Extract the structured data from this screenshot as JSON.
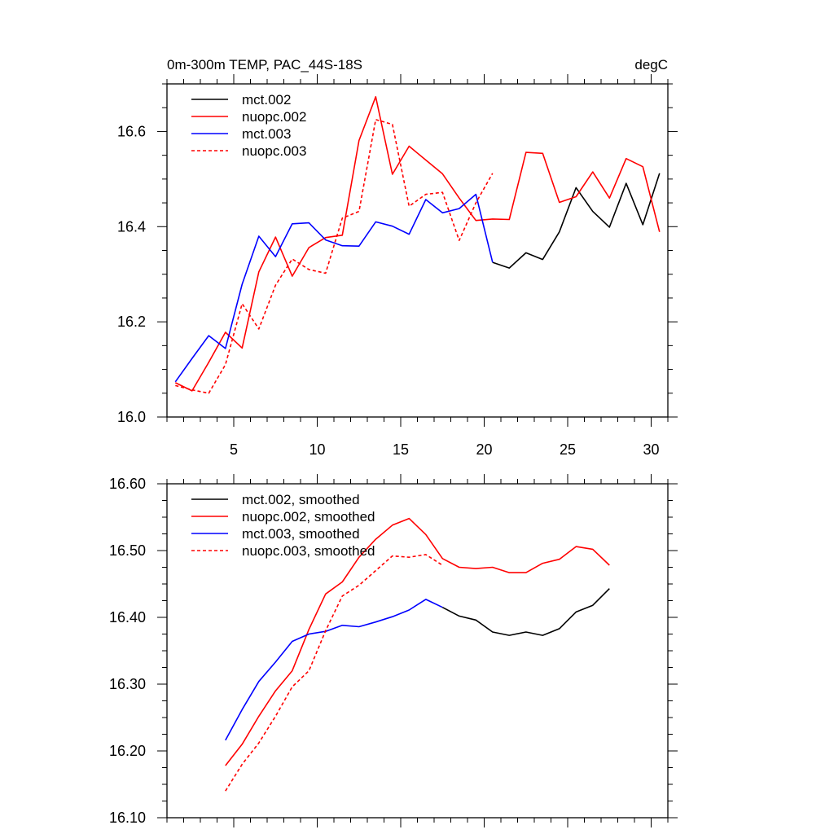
{
  "chart_data": [
    {
      "type": "line",
      "title": "0m-300m TEMP, PAC_44S-18S",
      "units": "degC",
      "xlim": [
        1,
        31
      ],
      "ylim": [
        16.0,
        16.7
      ],
      "xticks": [
        5,
        10,
        15,
        20,
        25,
        30
      ],
      "xtick_labels": [
        "5",
        "10",
        "15",
        "20",
        "25",
        "30"
      ],
      "yticks": [
        16.0,
        16.2,
        16.4,
        16.6
      ],
      "ytick_labels": [
        "16.0",
        "16.2",
        "16.4",
        "16.6"
      ],
      "legend_position": "top-left",
      "grid": false,
      "series": [
        {
          "name": "mct.002",
          "color": "#000000",
          "dash": "solid",
          "x": [
            20.5,
            21.5,
            22.5,
            23.5,
            24.5,
            25.5,
            26.5,
            27.5,
            28.5,
            29.5,
            30.5
          ],
          "y": [
            16.325,
            16.313,
            16.345,
            16.331,
            16.389,
            16.482,
            16.432,
            16.399,
            16.491,
            16.404,
            16.512
          ]
        },
        {
          "name": "nuopc.002",
          "color": "#ff0000",
          "dash": "solid",
          "x": [
            1.5,
            2.5,
            3.5,
            4.5,
            5.5,
            6.5,
            7.5,
            8.5,
            9.5,
            10.5,
            11.5,
            12.5,
            13.5,
            14.5,
            15.5,
            16.5,
            17.5,
            18.5,
            19.5,
            20.5,
            21.5,
            22.5,
            23.5,
            24.5,
            25.5,
            26.5,
            27.5,
            28.5,
            29.5,
            30.5
          ],
          "y": [
            16.072,
            16.055,
            16.115,
            16.178,
            16.145,
            16.305,
            16.378,
            16.296,
            16.356,
            16.377,
            16.382,
            16.581,
            16.673,
            16.51,
            16.569,
            16.54,
            16.511,
            16.46,
            16.413,
            16.416,
            16.415,
            16.556,
            16.554,
            16.451,
            16.463,
            16.515,
            16.46,
            16.543,
            16.526,
            16.389
          ]
        },
        {
          "name": "mct.003",
          "color": "#0000ff",
          "dash": "solid",
          "x": [
            1.5,
            2.5,
            3.5,
            4.5,
            5.5,
            6.5,
            7.5,
            8.5,
            9.5,
            10.5,
            11.5,
            12.5,
            13.5,
            14.5,
            15.5,
            16.5,
            17.5,
            18.5,
            19.5,
            20.5
          ],
          "y": [
            16.074,
            16.123,
            16.171,
            16.144,
            16.279,
            16.38,
            16.337,
            16.406,
            16.408,
            16.372,
            16.36,
            16.359,
            16.41,
            16.401,
            16.384,
            16.457,
            16.429,
            16.438,
            16.468,
            16.325
          ]
        },
        {
          "name": "nuopc.003",
          "color": "#ff0000",
          "dash": "dashed",
          "x": [
            1.5,
            2.5,
            3.5,
            4.5,
            5.5,
            6.5,
            7.5,
            8.5,
            9.5,
            10.5,
            11.5,
            12.5,
            13.5,
            14.5,
            15.5,
            16.5,
            17.5,
            18.5,
            19.5,
            20.5
          ],
          "y": [
            16.066,
            16.057,
            16.05,
            16.11,
            16.238,
            16.185,
            16.277,
            16.332,
            16.31,
            16.302,
            16.418,
            16.432,
            16.625,
            16.615,
            16.443,
            16.468,
            16.472,
            16.371,
            16.45,
            16.512
          ]
        }
      ]
    },
    {
      "type": "line",
      "title": "",
      "units": "",
      "xlim": [
        1,
        31
      ],
      "ylim": [
        16.1,
        16.6
      ],
      "xticks": [
        5,
        10,
        15,
        20,
        25,
        30
      ],
      "xtick_labels": [],
      "yticks": [
        16.1,
        16.2,
        16.3,
        16.4,
        16.5,
        16.6
      ],
      "ytick_labels": [
        "16.10",
        "16.20",
        "16.30",
        "16.40",
        "16.50",
        "16.60"
      ],
      "legend_position": "top-left",
      "grid": false,
      "series": [
        {
          "name": "mct.002, smoothed",
          "color": "#000000",
          "dash": "solid",
          "x": [
            17.5,
            18.5,
            19.5,
            20.5,
            21.5,
            22.5,
            23.5,
            24.5,
            25.5,
            26.5,
            27.5
          ],
          "y": [
            16.415,
            16.402,
            16.396,
            16.378,
            16.373,
            16.378,
            16.373,
            16.383,
            16.408,
            16.418,
            16.443
          ]
        },
        {
          "name": "nuopc.002, smoothed",
          "color": "#ff0000",
          "dash": "solid",
          "x": [
            4.5,
            5.5,
            6.5,
            7.5,
            8.5,
            9.5,
            10.5,
            11.5,
            12.5,
            13.5,
            14.5,
            15.5,
            16.5,
            17.5,
            18.5,
            19.5,
            20.5,
            21.5,
            22.5,
            23.5,
            24.5,
            25.5,
            26.5,
            27.5
          ],
          "y": [
            16.178,
            16.21,
            16.252,
            16.29,
            16.32,
            16.382,
            16.435,
            16.453,
            16.49,
            16.517,
            16.538,
            16.548,
            16.524,
            16.488,
            16.475,
            16.473,
            16.475,
            16.467,
            16.467,
            16.481,
            16.487,
            16.506,
            16.502,
            16.478
          ]
        },
        {
          "name": "mct.003, smoothed",
          "color": "#0000ff",
          "dash": "solid",
          "x": [
            4.5,
            5.5,
            6.5,
            7.5,
            8.5,
            9.5,
            10.5,
            11.5,
            12.5,
            13.5,
            14.5,
            15.5,
            16.5,
            17.5
          ],
          "y": [
            16.216,
            16.262,
            16.304,
            16.333,
            16.364,
            16.375,
            16.379,
            16.388,
            16.386,
            16.393,
            16.401,
            16.411,
            16.427,
            16.415
          ]
        },
        {
          "name": "nuopc.003, smoothed",
          "color": "#ff0000",
          "dash": "dashed",
          "x": [
            4.5,
            5.5,
            6.5,
            7.5,
            8.5,
            9.5,
            10.5,
            11.5,
            12.5,
            13.5,
            14.5,
            15.5,
            16.5,
            17.5
          ],
          "y": [
            16.14,
            16.18,
            16.212,
            16.252,
            16.296,
            16.32,
            16.38,
            16.432,
            16.448,
            16.47,
            16.492,
            16.49,
            16.494,
            16.478
          ]
        }
      ]
    }
  ]
}
